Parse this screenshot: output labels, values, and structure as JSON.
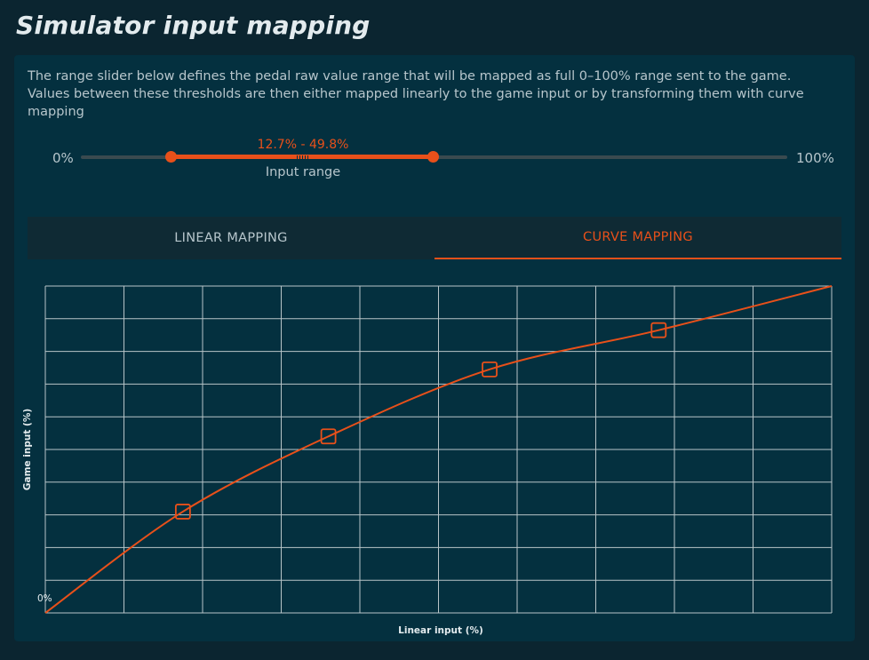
{
  "page": {
    "title": "Simulator input mapping"
  },
  "description": "The range slider below defines the pedal raw value range that will be mapped as full 0–100% range sent to the game. Values between these thresholds are then either mapped linearly to the game input or by transforming them with curve mapping",
  "slider": {
    "min_label": "0%",
    "max_label": "100%",
    "range_value": "12.7% - 49.8%",
    "range_label": "Input range",
    "low": 12.7,
    "high": 49.8
  },
  "tabs": [
    {
      "label": "LINEAR MAPPING",
      "active": false
    },
    {
      "label": "CURVE MAPPING",
      "active": true
    }
  ],
  "chart_data": {
    "type": "line",
    "xlabel": "Linear input (%)",
    "ylabel": "Game input (%)",
    "origin_label": "0%",
    "xlim": [
      0,
      100
    ],
    "ylim": [
      0,
      100
    ],
    "grid": true,
    "grid_divisions": 10,
    "series": [
      {
        "x": [
          0,
          17.5,
          36,
          56.5,
          78,
          100
        ],
        "y": [
          0,
          31,
          54,
          74.5,
          86.5,
          100
        ]
      }
    ],
    "control_points": [
      {
        "x": 17.5,
        "y": 31
      },
      {
        "x": 36,
        "y": 54
      },
      {
        "x": 56.5,
        "y": 74.5
      },
      {
        "x": 78,
        "y": 86.5
      }
    ]
  },
  "colors": {
    "accent": "#e8501a",
    "panel": "#04303f",
    "background": "#0b2530",
    "grid": "#b8c4c8"
  }
}
